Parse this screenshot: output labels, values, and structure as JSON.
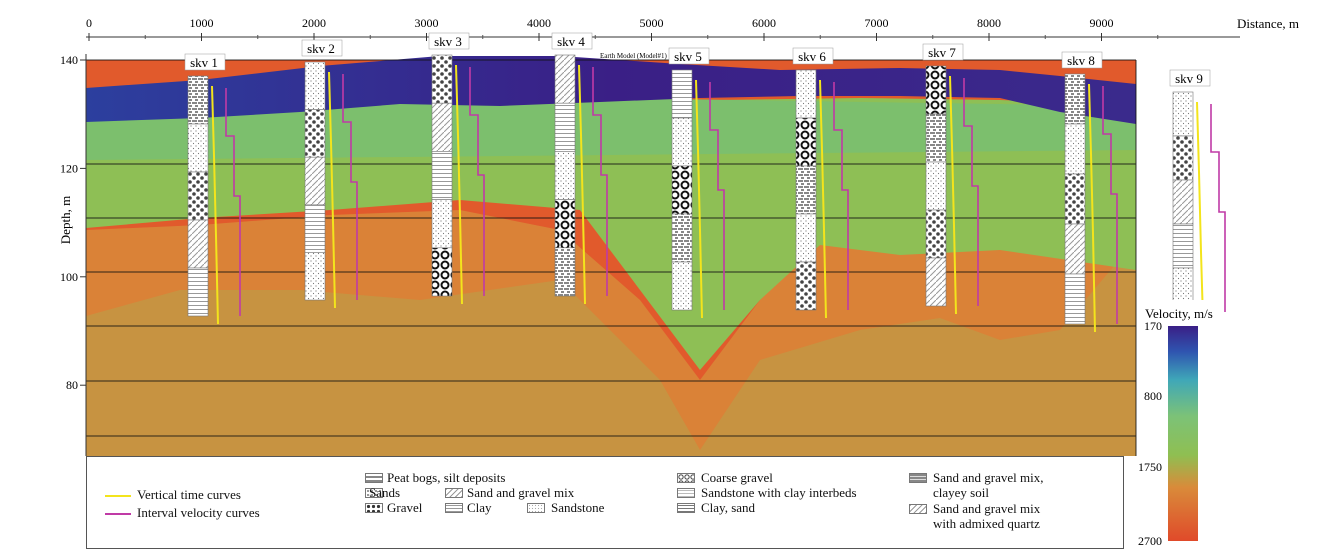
{
  "x_axis": {
    "label": "Distance, m",
    "ticks": [
      "0",
      "1000",
      "2000",
      "3000",
      "4000",
      "5000",
      "6000",
      "7000",
      "8000",
      "9000"
    ]
  },
  "y_axis": {
    "label": "Depth, m",
    "ticks": [
      "140",
      "120",
      "100",
      "80"
    ]
  },
  "model_label": "Earth Model   (Model#1)",
  "wells": [
    {
      "name": "skv 1",
      "distance": 1000
    },
    {
      "name": "skv 2",
      "distance": 2000
    },
    {
      "name": "skv 3",
      "distance": 3000
    },
    {
      "name": "skv 4",
      "distance": 4000
    },
    {
      "name": "skv 5",
      "distance": 5000
    },
    {
      "name": "skv 6",
      "distance": 6000
    },
    {
      "name": "skv 7",
      "distance": 7000
    },
    {
      "name": "skv 8",
      "distance": 8000
    },
    {
      "name": "skv 9",
      "distance": 9000
    }
  ],
  "colorbar": {
    "title": "Velocity, m/s",
    "ticks": [
      "170",
      "800",
      "1750",
      "2700"
    ],
    "colors": [
      "#3a1f86",
      "#2f55b0",
      "#3fa7b8",
      "#7cc277",
      "#8fbf52",
      "#d98b3a",
      "#e04a2a"
    ]
  },
  "legend": {
    "vertical_time": "Vertical time curves",
    "interval_velocity": "Interval velocity curves",
    "vertical_time_color": "#f3e41c",
    "interval_velocity_color": "#c03aa6",
    "peat": "Peat bogs, silt deposits",
    "sands": "Sands",
    "gravel": "Gravel",
    "sg_mix": "Sand and gravel mix",
    "clay": "Clay",
    "sandstone": "Sandstone",
    "coarse_gravel": "Coarse gravel",
    "sandstone_clay": "Sandstone with clay interbeds",
    "clay_sand": "Clay, sand",
    "sg_clayey_1": "Sand and gravel mix,",
    "sg_clayey_2": "clayey soil",
    "sg_quartz_1": "Sand and gravel mix",
    "sg_quartz_2": "with admixed quartz"
  }
}
